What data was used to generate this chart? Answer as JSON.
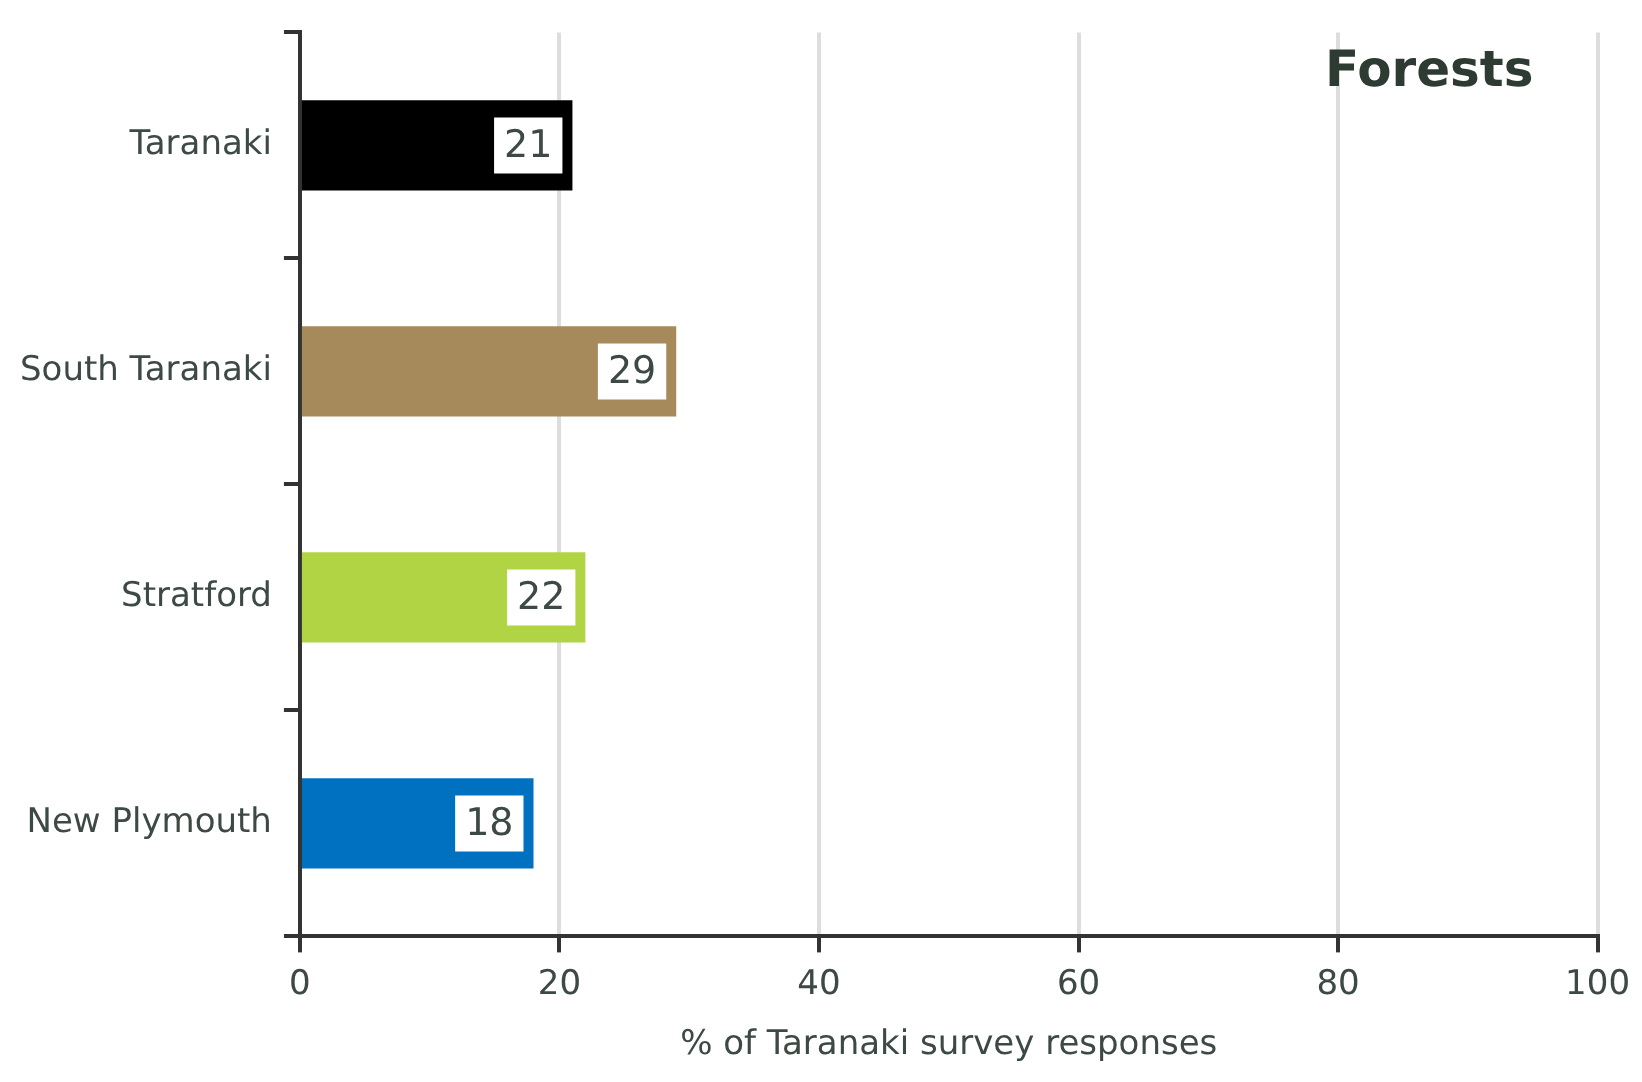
{
  "chart_data": {
    "type": "bar",
    "orientation": "horizontal",
    "title": "Forests",
    "xlabel": "% of Taranaki survey responses",
    "categories": [
      "Taranaki",
      "South Taranaki",
      "Stratford",
      "New Plymouth"
    ],
    "values": [
      21,
      29,
      22,
      18
    ],
    "colors": [
      "#000000",
      "#a68a5b",
      "#b0d443",
      "#0070c0"
    ],
    "xlim": [
      0,
      100
    ],
    "xticks": [
      0,
      20,
      40,
      60,
      80,
      100
    ],
    "grid": "x",
    "data_labels": true,
    "legend": false
  }
}
